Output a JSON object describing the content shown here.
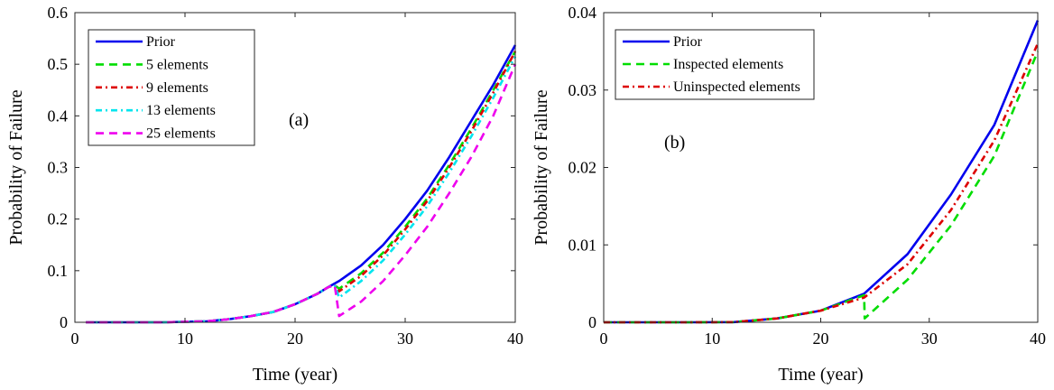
{
  "chart_data": [
    {
      "type": "line",
      "panel_label": "(a)",
      "xlabel": "Time (year)",
      "ylabel": "Probability of Failure",
      "xlim": [
        0,
        40
      ],
      "ylim": [
        0,
        0.6
      ],
      "xticks": [
        0,
        10,
        20,
        30,
        40
      ],
      "yticks": [
        0,
        0.1,
        0.2,
        0.3,
        0.4,
        0.5,
        0.6
      ],
      "ytick_labels": [
        "0",
        "0.1",
        "0.2",
        "0.3",
        "0.4",
        "0.5",
        "0.6"
      ],
      "grid": false,
      "legend_position": "top-left",
      "series": [
        {
          "name": "Prior",
          "color": "#0000ee",
          "dash": "solid",
          "x": [
            1,
            4,
            8,
            12,
            14,
            16,
            18,
            20,
            22,
            23,
            24,
            26,
            28,
            30,
            32,
            34,
            36,
            38,
            40
          ],
          "y": [
            0,
            0,
            0,
            0.002,
            0.006,
            0.012,
            0.02,
            0.035,
            0.055,
            0.068,
            0.08,
            0.11,
            0.15,
            0.2,
            0.255,
            0.32,
            0.39,
            0.46,
            0.537
          ]
        },
        {
          "name": "5 elements",
          "color": "#00dd00",
          "dash": "dashed",
          "x": [
            1,
            4,
            8,
            12,
            14,
            16,
            18,
            20,
            22,
            23,
            23.6,
            24,
            26,
            28,
            30,
            32,
            34,
            36,
            38,
            40
          ],
          "y": [
            0,
            0,
            0,
            0.002,
            0.006,
            0.012,
            0.02,
            0.035,
            0.055,
            0.068,
            0.072,
            0.065,
            0.095,
            0.135,
            0.185,
            0.24,
            0.305,
            0.375,
            0.45,
            0.525
          ]
        },
        {
          "name": "9 elements",
          "color": "#dd0000",
          "dash": "dashdot",
          "x": [
            1,
            4,
            8,
            12,
            14,
            16,
            18,
            20,
            22,
            23,
            23.6,
            24,
            26,
            28,
            30,
            32,
            34,
            36,
            38,
            40
          ],
          "y": [
            0,
            0,
            0,
            0.002,
            0.006,
            0.012,
            0.02,
            0.035,
            0.055,
            0.068,
            0.072,
            0.06,
            0.09,
            0.13,
            0.18,
            0.235,
            0.3,
            0.37,
            0.445,
            0.525
          ]
        },
        {
          "name": "13 elements",
          "color": "#00e5ee",
          "dash": "dashdot",
          "x": [
            1,
            4,
            8,
            12,
            14,
            16,
            18,
            20,
            22,
            23,
            23.6,
            24,
            26,
            28,
            30,
            32,
            34,
            36,
            38,
            40
          ],
          "y": [
            0,
            0,
            0,
            0.002,
            0.006,
            0.012,
            0.02,
            0.035,
            0.055,
            0.068,
            0.072,
            0.048,
            0.08,
            0.12,
            0.17,
            0.225,
            0.29,
            0.36,
            0.435,
            0.515
          ]
        },
        {
          "name": "25 elements",
          "color": "#ee00ee",
          "dash": "dashed",
          "x": [
            1,
            4,
            8,
            12,
            14,
            16,
            18,
            20,
            22,
            23,
            23.6,
            24,
            26,
            28,
            30,
            32,
            34,
            36,
            38,
            40
          ],
          "y": [
            0,
            0,
            0,
            0.002,
            0.006,
            0.012,
            0.02,
            0.035,
            0.055,
            0.068,
            0.072,
            0.012,
            0.04,
            0.08,
            0.13,
            0.185,
            0.25,
            0.32,
            0.4,
            0.5
          ]
        }
      ]
    },
    {
      "type": "line",
      "panel_label": "(b)",
      "xlabel": "Time (year)",
      "ylabel": "Probability of Failure",
      "xlim": [
        0,
        40
      ],
      "ylim": [
        0,
        0.04
      ],
      "xticks": [
        0,
        10,
        20,
        30,
        40
      ],
      "yticks": [
        0,
        0.01,
        0.02,
        0.03,
        0.04
      ],
      "ytick_labels": [
        "0",
        "0.01",
        "0.02",
        "0.03",
        "0.04"
      ],
      "grid": false,
      "legend_position": "top-left",
      "series": [
        {
          "name": "Prior",
          "color": "#0000ee",
          "dash": "solid",
          "x": [
            0,
            4,
            8,
            12,
            16,
            20,
            24,
            28,
            32,
            36,
            40
          ],
          "y": [
            0,
            0,
            0,
            2e-05,
            0.0005,
            0.0015,
            0.0037,
            0.0088,
            0.0165,
            0.0255,
            0.039
          ]
        },
        {
          "name": "Inspected elements",
          "color": "#00dd00",
          "dash": "dashed",
          "x": [
            0,
            4,
            8,
            12,
            16,
            20,
            24,
            24.05,
            28,
            32,
            36,
            40
          ],
          "y": [
            0,
            0,
            0,
            2e-05,
            0.0005,
            0.0015,
            0.0035,
            0.0005,
            0.0055,
            0.0125,
            0.0215,
            0.035
          ]
        },
        {
          "name": "Uninspected elements",
          "color": "#dd0000",
          "dash": "dashdot",
          "x": [
            0,
            4,
            8,
            12,
            16,
            20,
            24,
            28,
            32,
            36,
            40
          ],
          "y": [
            0,
            0,
            0,
            2e-05,
            0.0005,
            0.0015,
            0.0032,
            0.0075,
            0.0145,
            0.0235,
            0.036
          ]
        }
      ]
    }
  ]
}
